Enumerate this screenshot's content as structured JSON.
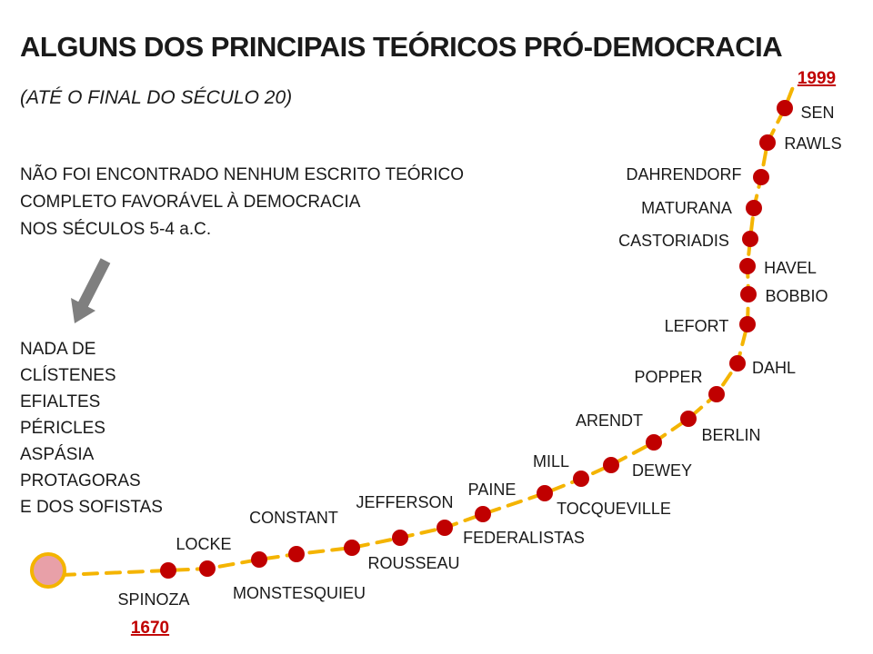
{
  "title": "ALGUNS DOS PRINCIPAIS TEÓRICOS PRÓ-DEMOCRACIA",
  "subtitle": "(ATÉ O FINAL DO SÉCULO 20)",
  "note_lines": [
    "NÃO FOI ENCONTRADO NENHUM ESCRITO TEÓRICO",
    "COMPLETO FAVORÁVEL À DEMOCRACIA",
    "NOS SÉCULOS 5-4 a.C."
  ],
  "absent_lines": [
    "NADA DE",
    "CLÍSTENES",
    "EFIALTES",
    "PÉRICLES",
    "ASPÁSIA",
    "PROTAGORAS",
    "E DOS SOFISTAS"
  ],
  "start_year": "1670",
  "end_year": "1999",
  "theorists": [
    "SPINOZA",
    "LOCKE",
    "MONSTESQUIEU",
    "CONSTANT",
    "ROUSSEAU",
    "JEFFERSON",
    "FEDERALISTAS",
    "PAINE",
    "TOCQUEVILLE",
    "MILL",
    "DEWEY",
    "BERLIN",
    "ARENDT",
    "POPPER",
    "DAHL",
    "LEFORT",
    "BOBBIO",
    "HAVEL",
    "CASTORIADIS",
    "MATURANA",
    "DAHRENDORF",
    "RAWLS",
    "SEN"
  ],
  "colors": {
    "dot": "#c00000",
    "line": "#f4b400",
    "start_fill": "#e8a0a8",
    "start_stroke": "#f4b400",
    "arrow": "#7f7f7f",
    "year": "#c00000",
    "text": "#1a1a1a"
  }
}
